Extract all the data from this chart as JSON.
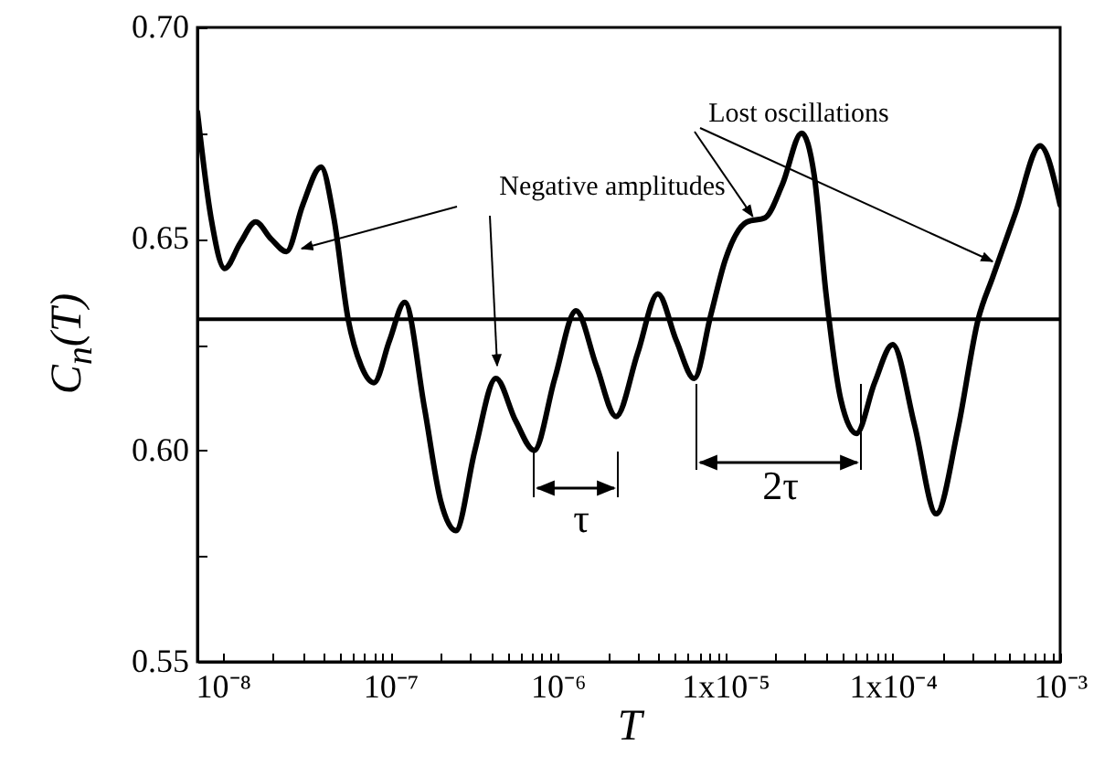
{
  "chart_data": {
    "type": "line",
    "xlabel": "T",
    "ylabel": "C$_{n}$(T)",
    "log": "x",
    "xlim": [
      7.05e-09,
      0.001
    ],
    "ylim": [
      0.55,
      0.7
    ],
    "xticks": [
      {
        "value": 1e-08,
        "label": "10⁻⁸"
      },
      {
        "value": 2e-08,
        "label": null
      },
      {
        "value": 3e-08,
        "label": null
      },
      {
        "value": 4e-08,
        "label": null
      },
      {
        "value": 5e-08,
        "label": null
      },
      {
        "value": 6e-08,
        "label": null
      },
      {
        "value": 7e-08,
        "label": null
      },
      {
        "value": 8e-08,
        "label": null
      },
      {
        "value": 9e-08,
        "label": null
      },
      {
        "value": 1e-07,
        "label": "10⁻⁷"
      },
      {
        "value": 2e-07,
        "label": null
      },
      {
        "value": 3e-07,
        "label": null
      },
      {
        "value": 4e-07,
        "label": null
      },
      {
        "value": 5e-07,
        "label": null
      },
      {
        "value": 6e-07,
        "label": null
      },
      {
        "value": 7e-07,
        "label": null
      },
      {
        "value": 8e-07,
        "label": null
      },
      {
        "value": 9e-07,
        "label": null
      },
      {
        "value": 1e-06,
        "label": "10⁻⁶"
      },
      {
        "value": 2e-06,
        "label": null
      },
      {
        "value": 3e-06,
        "label": null
      },
      {
        "value": 4e-06,
        "label": null
      },
      {
        "value": 5e-06,
        "label": null
      },
      {
        "value": 6e-06,
        "label": null
      },
      {
        "value": 7e-06,
        "label": null
      },
      {
        "value": 8e-06,
        "label": null
      },
      {
        "value": 9e-06,
        "label": null
      },
      {
        "value": 1e-05,
        "label": "1x10⁻⁵"
      },
      {
        "value": 2e-05,
        "label": null
      },
      {
        "value": 3e-05,
        "label": null
      },
      {
        "value": 4e-05,
        "label": null
      },
      {
        "value": 5e-05,
        "label": null
      },
      {
        "value": 6e-05,
        "label": null
      },
      {
        "value": 7e-05,
        "label": null
      },
      {
        "value": 8e-05,
        "label": null
      },
      {
        "value": 9e-05,
        "label": null
      },
      {
        "value": 0.0001,
        "label": "1x10⁻⁴"
      },
      {
        "value": 0.0002,
        "label": null
      },
      {
        "value": 0.0003,
        "label": null
      },
      {
        "value": 0.0004,
        "label": null
      },
      {
        "value": 0.0005,
        "label": null
      },
      {
        "value": 0.0006,
        "label": null
      },
      {
        "value": 0.0007,
        "label": null
      },
      {
        "value": 0.0008,
        "label": null
      },
      {
        "value": 0.0009,
        "label": null
      },
      {
        "value": 0.001,
        "label": "10⁻³"
      }
    ],
    "yticks": [
      {
        "value": 0.55,
        "label": "0.55"
      },
      {
        "value": 0.575,
        "label": null
      },
      {
        "value": 0.6,
        "label": "0.60"
      },
      {
        "value": 0.625,
        "label": null
      },
      {
        "value": 0.65,
        "label": "0.65"
      },
      {
        "value": 0.675,
        "label": null
      },
      {
        "value": 0.7,
        "label": "0.70"
      }
    ],
    "series": [
      {
        "color": "#000000",
        "x": [
          7.05e-09,
          8.5e-09,
          1.026e-08,
          1.27e-08,
          1.57e-08,
          1.94e-08,
          2.4e-08,
          3e-08,
          3.86e-08,
          4.6e-08,
          5.6e-08,
          6.7e-08,
          7.98e-08,
          9.9e-08,
          1.22e-07,
          1.6e-07,
          2e-07,
          2.46e-07,
          3.2e-07,
          4.27e-07,
          5.6e-07,
          7.23e-07,
          9.6e-07,
          1.285e-06,
          1.7e-06,
          2.23e-06,
          3e-06,
          3.96e-06,
          5.1e-06,
          6.53e-06,
          8.2e-06,
          1e-05,
          1.35e-05,
          1.73e-05,
          2.2e-05,
          2.86e-05,
          3.4e-05,
          4e-05,
          4.9e-05,
          6.07e-05,
          7.8e-05,
          0.0001,
          0.000135,
          0.000182,
          0.000245,
          0.000324,
          0.000396,
          0.00054,
          0.000759,
          0.001
        ],
        "values": [
          0.68,
          0.655,
          0.643,
          0.649,
          0.654,
          0.65,
          0.647,
          0.658,
          0.667,
          0.655,
          0.631,
          0.62,
          0.616,
          0.626,
          0.635,
          0.61,
          0.588,
          0.581,
          0.6,
          0.617,
          0.607,
          0.6,
          0.617,
          0.633,
          0.62,
          0.608,
          0.623,
          0.637,
          0.626,
          0.617,
          0.632,
          0.645,
          0.654,
          0.655,
          0.663,
          0.675,
          0.665,
          0.637,
          0.612,
          0.604,
          0.616,
          0.625,
          0.606,
          0.585,
          0.605,
          0.631,
          0.641,
          0.656,
          0.672,
          0.658
        ]
      }
    ],
    "ref_lines": [
      {
        "axis": "y",
        "value": 0.631,
        "color": "#000000"
      }
    ],
    "annotations": [
      "Negative amplitudes",
      {
        "text": "Lost oscillations",
        "x": 1.46e-05,
        "y": 0.654
      },
      "τ",
      "2τ"
    ]
  }
}
